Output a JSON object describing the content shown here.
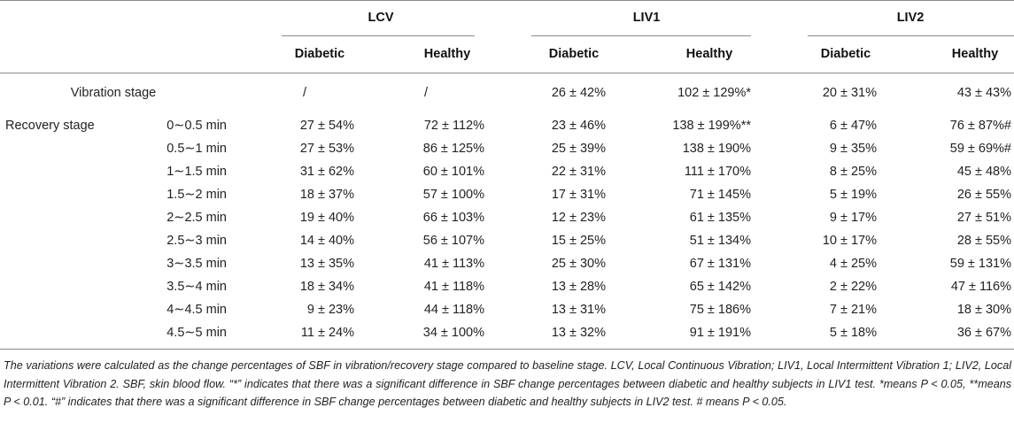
{
  "table": {
    "groups": [
      {
        "label": "LCV",
        "sub": [
          "Diabetic",
          "Healthy"
        ]
      },
      {
        "label": "LIV1",
        "sub": [
          "Diabetic",
          "Healthy"
        ]
      },
      {
        "label": "LIV2",
        "sub": [
          "Diabetic",
          "Healthy"
        ]
      }
    ],
    "vibration_row": {
      "label": "Vibration stage",
      "values": [
        "/",
        "/",
        "26 ± 42%",
        "102 ± 129%*",
        "20 ± 31%",
        "43 ± 43%"
      ]
    },
    "recovery_label": "Recovery stage",
    "recovery_rows": [
      {
        "time": "0∼0.5 min",
        "values": [
          "27 ± 54%",
          "72 ± 112%",
          "23 ± 46%",
          "138 ± 199%**",
          "6 ± 47%",
          "76 ± 87%#"
        ]
      },
      {
        "time": "0.5∼1 min",
        "values": [
          "27 ± 53%",
          "86 ± 125%",
          "25 ± 39%",
          "138 ± 190%",
          "9 ± 35%",
          "59 ± 69%#"
        ]
      },
      {
        "time": "1∼1.5 min",
        "values": [
          "31 ± 62%",
          "60 ± 101%",
          "22 ± 31%",
          "111 ± 170%",
          "8 ± 25%",
          "45 ± 48%"
        ]
      },
      {
        "time": "1.5∼2 min",
        "values": [
          "18 ± 37%",
          "57 ± 100%",
          "17 ± 31%",
          "71 ± 145%",
          "5 ± 19%",
          "26 ± 55%"
        ]
      },
      {
        "time": "2∼2.5 min",
        "values": [
          "19 ± 40%",
          "66 ± 103%",
          "12 ± 23%",
          "61 ± 135%",
          "9 ± 17%",
          "27 ± 51%"
        ]
      },
      {
        "time": "2.5∼3 min",
        "values": [
          "14 ± 40%",
          "56 ± 107%",
          "15 ± 25%",
          "51 ± 134%",
          "10 ± 17%",
          "28 ± 55%"
        ]
      },
      {
        "time": "3∼3.5 min",
        "values": [
          "13 ± 35%",
          "41 ± 113%",
          "25 ± 30%",
          "67 ± 131%",
          "4 ± 25%",
          "59 ± 131%"
        ]
      },
      {
        "time": "3.5∼4 min",
        "values": [
          "18 ± 34%",
          "41 ± 118%",
          "13 ± 28%",
          "65 ± 142%",
          "2 ± 22%",
          "47 ± 116%"
        ]
      },
      {
        "time": "4∼4.5 min",
        "values": [
          "9 ± 23%",
          "44 ± 118%",
          "13 ± 31%",
          "75 ± 186%",
          "7 ± 21%",
          "18 ± 30%"
        ]
      },
      {
        "time": "4.5∼5 min",
        "values": [
          "11 ± 24%",
          "34 ± 100%",
          "13 ± 32%",
          "91 ± 191%",
          "5 ± 18%",
          "36 ± 67%"
        ]
      }
    ]
  },
  "footnote": "The variations were calculated as the change percentages of SBF in vibration/recovery stage compared to baseline stage. LCV, Local Continuous Vibration; LIV1, Local Intermittent Vibration 1; LIV2, Local Intermittent Vibration 2. SBF, skin blood flow. “*” indicates that there was a significant difference in SBF change percentages between diabetic and healthy subjects in LIV1 test. *means P < 0.05, **means P < 0.01. “#” indicates that there was a significant difference in SBF change percentages between diabetic and healthy subjects in LIV2 test. # means P < 0.05."
}
